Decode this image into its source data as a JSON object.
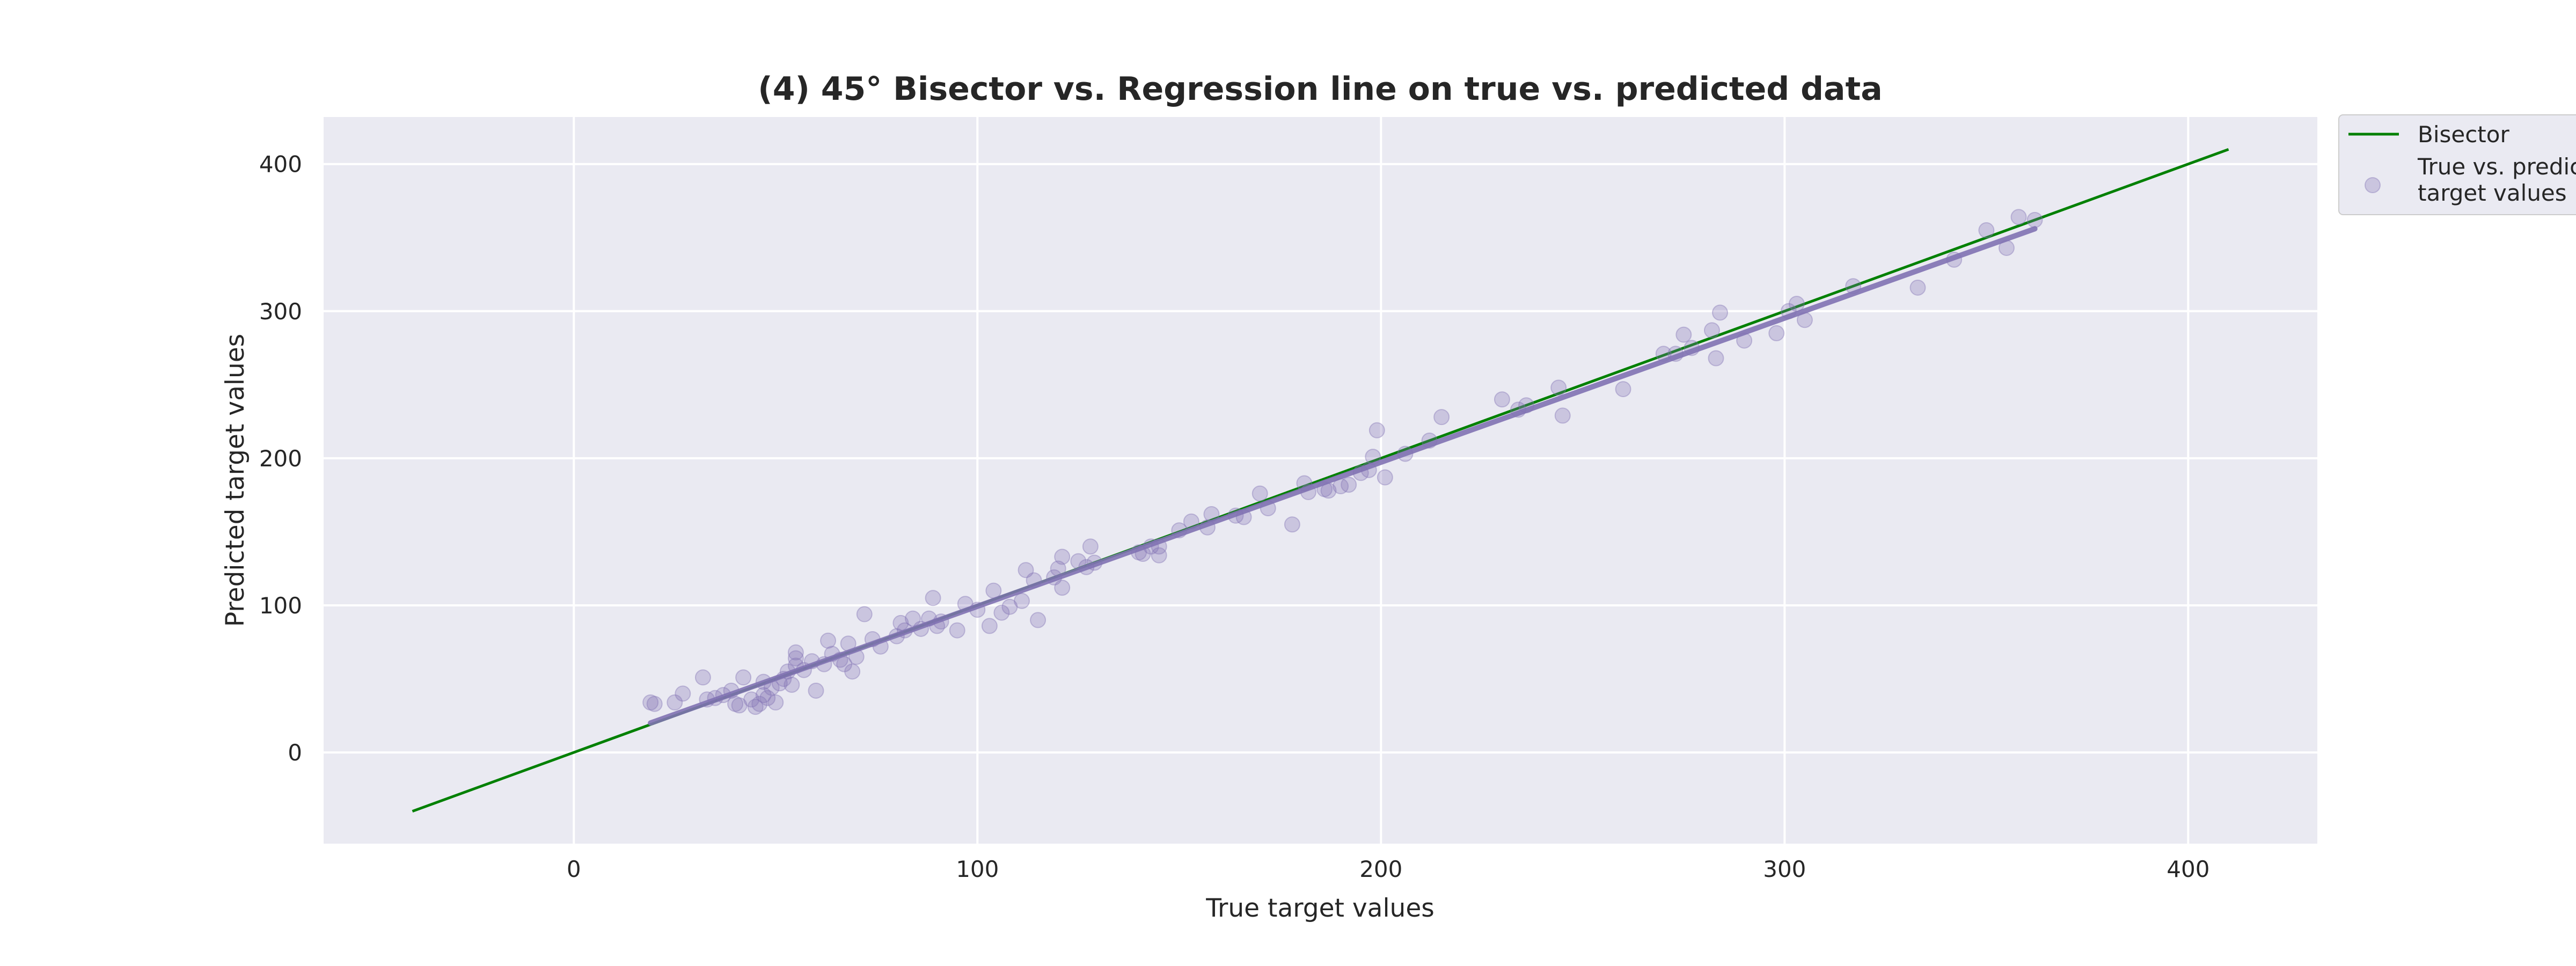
{
  "chart_data": {
    "type": "scatter",
    "title": "(4) 45° Bisector vs. Regression line on true vs. predicted data",
    "xlabel": "True target values",
    "ylabel": "Predicted target values",
    "xlim": [
      -62,
      432
    ],
    "ylim": [
      -62,
      432
    ],
    "xticks": [
      0,
      100,
      200,
      300,
      400
    ],
    "yticks": [
      0,
      100,
      200,
      300,
      400
    ],
    "grid": true,
    "legend_position": "outside-top-right",
    "legend": {
      "bisector_label": "Bisector",
      "scatter_label_line1": "True vs. predicted",
      "scatter_label_line2": "target values"
    },
    "colors": {
      "background": "#eaeaf2",
      "grid": "#ffffff",
      "bisector": "#008000",
      "points": "#8172b3",
      "regression": "#8172b3"
    },
    "bisector": {
      "x": [
        -40,
        410
      ],
      "y": [
        -40,
        410
      ]
    },
    "regression": {
      "x": [
        19,
        362
      ],
      "y": [
        20,
        356
      ]
    },
    "series": [
      {
        "name": "True vs. predicted target values",
        "points": [
          [
            19,
            34
          ],
          [
            20,
            33
          ],
          [
            25,
            34
          ],
          [
            27,
            40
          ],
          [
            32,
            51
          ],
          [
            33,
            36
          ],
          [
            35,
            37
          ],
          [
            37,
            39
          ],
          [
            39,
            42
          ],
          [
            40,
            33
          ],
          [
            41,
            32
          ],
          [
            42,
            51
          ],
          [
            44,
            36
          ],
          [
            45,
            31
          ],
          [
            46,
            33
          ],
          [
            47,
            39
          ],
          [
            47,
            48
          ],
          [
            48,
            37
          ],
          [
            49,
            44
          ],
          [
            50,
            34
          ],
          [
            51,
            47
          ],
          [
            52,
            50
          ],
          [
            53,
            55
          ],
          [
            54,
            46
          ],
          [
            55,
            59
          ],
          [
            55,
            64
          ],
          [
            55,
            68
          ],
          [
            57,
            56
          ],
          [
            59,
            62
          ],
          [
            60,
            42
          ],
          [
            62,
            60
          ],
          [
            63,
            76
          ],
          [
            64,
            67
          ],
          [
            66,
            63
          ],
          [
            67,
            60
          ],
          [
            68,
            74
          ],
          [
            69,
            55
          ],
          [
            70,
            65
          ],
          [
            72,
            94
          ],
          [
            74,
            77
          ],
          [
            76,
            72
          ],
          [
            80,
            79
          ],
          [
            81,
            88
          ],
          [
            82,
            83
          ],
          [
            84,
            91
          ],
          [
            86,
            84
          ],
          [
            88,
            91
          ],
          [
            89,
            105
          ],
          [
            90,
            86
          ],
          [
            91,
            89
          ],
          [
            95,
            83
          ],
          [
            97,
            101
          ],
          [
            100,
            97
          ],
          [
            103,
            86
          ],
          [
            104,
            110
          ],
          [
            106,
            95
          ],
          [
            108,
            99
          ],
          [
            111,
            103
          ],
          [
            112,
            124
          ],
          [
            114,
            117
          ],
          [
            115,
            90
          ],
          [
            119,
            119
          ],
          [
            120,
            125
          ],
          [
            121,
            112
          ],
          [
            121,
            133
          ],
          [
            125,
            130
          ],
          [
            127,
            126
          ],
          [
            128,
            140
          ],
          [
            129,
            129
          ],
          [
            140,
            136
          ],
          [
            141,
            135
          ],
          [
            143,
            140
          ],
          [
            145,
            140
          ],
          [
            145,
            134
          ],
          [
            150,
            151
          ],
          [
            153,
            157
          ],
          [
            157,
            153
          ],
          [
            158,
            162
          ],
          [
            164,
            161
          ],
          [
            166,
            160
          ],
          [
            170,
            176
          ],
          [
            172,
            166
          ],
          [
            178,
            155
          ],
          [
            181,
            183
          ],
          [
            182,
            177
          ],
          [
            186,
            179
          ],
          [
            187,
            178
          ],
          [
            190,
            181
          ],
          [
            192,
            182
          ],
          [
            195,
            190
          ],
          [
            197,
            192
          ],
          [
            198,
            201
          ],
          [
            199,
            219
          ],
          [
            201,
            187
          ],
          [
            206,
            203
          ],
          [
            212,
            212
          ],
          [
            215,
            228
          ],
          [
            230,
            240
          ],
          [
            234,
            233
          ],
          [
            236,
            236
          ],
          [
            244,
            248
          ],
          [
            245,
            229
          ],
          [
            260,
            247
          ],
          [
            270,
            271
          ],
          [
            273,
            271
          ],
          [
            275,
            284
          ],
          [
            277,
            275
          ],
          [
            282,
            287
          ],
          [
            283,
            268
          ],
          [
            284,
            299
          ],
          [
            290,
            280
          ],
          [
            298,
            285
          ],
          [
            301,
            300
          ],
          [
            303,
            305
          ],
          [
            305,
            294
          ],
          [
            317,
            317
          ],
          [
            333,
            316
          ],
          [
            342,
            335
          ],
          [
            350,
            355
          ],
          [
            355,
            343
          ],
          [
            358,
            364
          ],
          [
            362,
            362
          ]
        ]
      }
    ]
  }
}
